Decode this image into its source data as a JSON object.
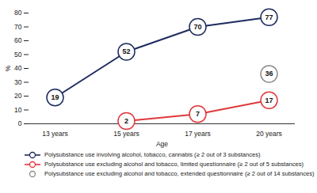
{
  "chart_data": {
    "type": "line",
    "y_label": "%",
    "x_label": "Age",
    "categories": [
      "13 years",
      "15 years",
      "17 years",
      "20 years"
    ],
    "ylim": [
      0,
      80
    ],
    "yticks": [
      0,
      10,
      20,
      30,
      40,
      50,
      60,
      70,
      80
    ],
    "grid": false,
    "data_labels": true,
    "legend": "bottom",
    "series": [
      {
        "name": "Polysubstance use involving alcohol, tobacco, cannabis (≥ 2 out of 3 substances)",
        "color": "#1d2b5e",
        "type": "line",
        "marker": "circle",
        "line_style": "solid",
        "values": [
          19,
          52,
          70,
          77
        ]
      },
      {
        "name": "Polysubstance use excluding alcohol and tobacco, limited questionnaire (≥ 2 out of 5 substances)",
        "color": "#e0383a",
        "type": "line",
        "marker": "circle",
        "line_style": "solid",
        "values": [
          null,
          2,
          7,
          17
        ]
      },
      {
        "name": "Polysubstance use excluding alcohol and tobacco, extended questionnaire (≥ 2 out of 14 substances)",
        "color": "#8c8c8c",
        "type": "scatter",
        "marker": "circle",
        "values": [
          null,
          null,
          null,
          36
        ]
      }
    ]
  }
}
